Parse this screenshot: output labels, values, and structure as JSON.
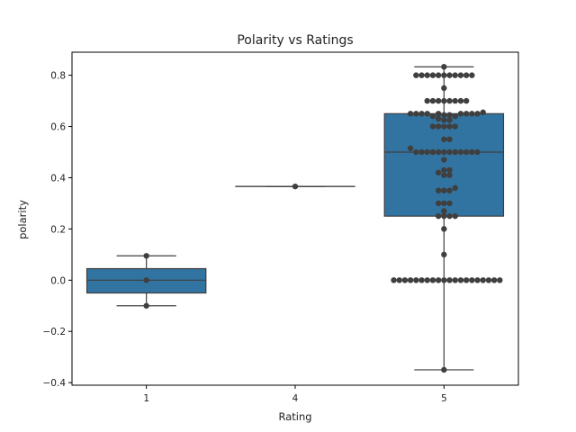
{
  "chart_data": {
    "type": "box",
    "title": "Polarity vs Ratings",
    "xlabel": "Rating",
    "ylabel": "polarity",
    "categories": [
      "1",
      "4",
      "5"
    ],
    "ylim": [
      -0.41,
      0.89
    ],
    "y_ticks": [
      -0.4,
      -0.2,
      0.0,
      0.2,
      0.4,
      0.6,
      0.8
    ],
    "y_tick_labels": [
      "−0.4",
      "−0.2",
      "0.0",
      "0.2",
      "0.4",
      "0.6",
      "0.8"
    ],
    "grid": false,
    "legend": "none",
    "colors": {
      "box_fill": "#3274a1",
      "box_line": "#3f3f3f",
      "point": "#3f3f3f",
      "axes": "#000000"
    },
    "boxes": [
      {
        "category": "1",
        "whisker_low": -0.1,
        "q1": -0.05,
        "median": 0.0,
        "q3": 0.045,
        "whisker_high": 0.095
      },
      {
        "category": "4",
        "whisker_low": 0.366,
        "q1": 0.366,
        "median": 0.366,
        "q3": 0.366,
        "whisker_high": 0.366
      },
      {
        "category": "5",
        "whisker_low": -0.35,
        "q1": 0.25,
        "median": 0.5,
        "q3": 0.65,
        "whisker_high": 0.833
      }
    ],
    "swarm": [
      {
        "category": "1",
        "values": [
          -0.1,
          0.0,
          0.095
        ]
      },
      {
        "category": "4",
        "values": [
          0.366
        ]
      },
      {
        "category": "5",
        "values": [
          -0.35,
          0,
          0,
          0,
          0,
          0,
          0,
          0,
          0,
          0,
          0,
          0,
          0,
          0,
          0,
          0,
          0,
          0,
          0,
          0,
          0,
          0.1,
          0.2,
          0.25,
          0.25,
          0.25,
          0.25,
          0.27,
          0.3,
          0.3,
          0.3,
          0.35,
          0.35,
          0.35,
          0.36,
          0.41,
          0.41,
          0.42,
          0.43,
          0.43,
          0.47,
          0.5,
          0.5,
          0.5,
          0.5,
          0.5,
          0.5,
          0.5,
          0.5,
          0.5,
          0.5,
          0.5,
          0.5,
          0.515,
          0.55,
          0.55,
          0.6,
          0.6,
          0.6,
          0.6,
          0.6,
          0.625,
          0.625,
          0.63,
          0.64,
          0.64,
          0.645,
          0.645,
          0.65,
          0.65,
          0.65,
          0.65,
          0.65,
          0.65,
          0.65,
          0.65,
          0.65,
          0.655,
          0.7,
          0.7,
          0.7,
          0.7,
          0.7,
          0.7,
          0.7,
          0.7,
          0.75,
          0.8,
          0.8,
          0.8,
          0.8,
          0.8,
          0.8,
          0.8,
          0.8,
          0.8,
          0.8,
          0.8,
          0.833
        ]
      }
    ]
  }
}
